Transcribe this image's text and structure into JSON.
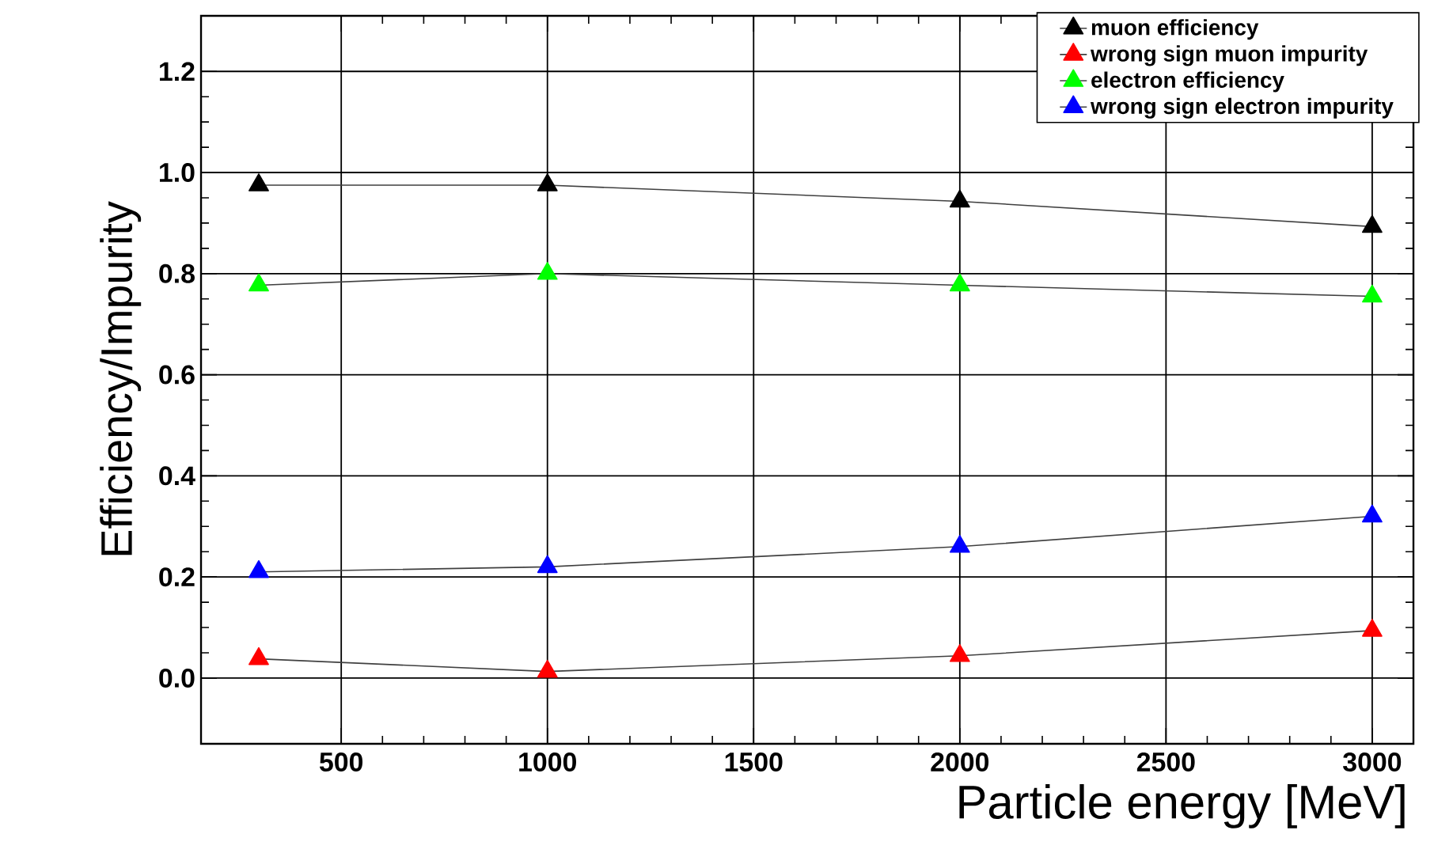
{
  "chart_data": {
    "type": "line",
    "xlabel": "Particle energy [MeV]",
    "ylabel": "Efficiency/Impurity",
    "x": [
      300,
      1000,
      2000,
      3000
    ],
    "series": [
      {
        "name": "muon efficiency",
        "color": "#000000",
        "values": [
          0.975,
          0.975,
          0.943,
          0.893
        ]
      },
      {
        "name": "wrong sign muon impurity",
        "color": "#ff0000",
        "values": [
          0.038,
          0.013,
          0.044,
          0.094
        ]
      },
      {
        "name": "electron efficiency",
        "color": "#00ff00",
        "values": [
          0.777,
          0.8,
          0.777,
          0.755
        ]
      },
      {
        "name": "wrong sign electron impurity",
        "color": "#0000ff",
        "values": [
          0.21,
          0.22,
          0.26,
          0.32
        ]
      }
    ],
    "xlim": [
      160,
      3100
    ],
    "ylim": [
      -0.13,
      1.31
    ],
    "xticks": [
      500,
      1000,
      1500,
      2000,
      2500,
      3000
    ],
    "yticks": [
      {
        "value": 0,
        "label": "0.0"
      },
      {
        "value": 0.2,
        "label": "0.2"
      },
      {
        "value": 0.4,
        "label": "0.4"
      },
      {
        "value": 0.6,
        "label": "0.6"
      },
      {
        "value": 0.8,
        "label": "0.8"
      },
      {
        "value": 1.0,
        "label": "1.0"
      },
      {
        "value": 1.2,
        "label": "1.2"
      }
    ],
    "grid": true,
    "legend": "top right",
    "marker": "triangle",
    "line_style": "solid"
  }
}
